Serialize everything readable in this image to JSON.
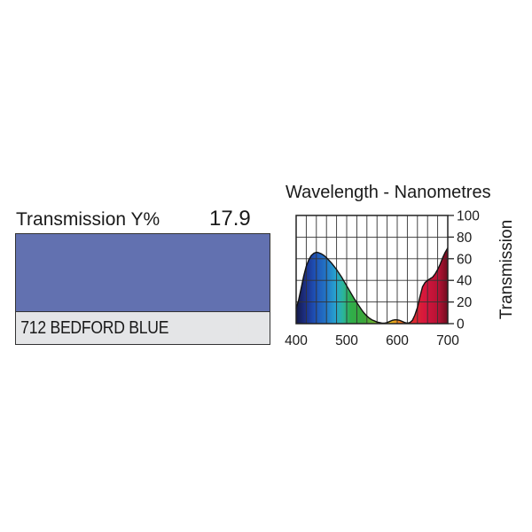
{
  "filter": {
    "transmission_label": "Transmission Y%",
    "transmission_value": "17.9",
    "name": "712 BEDFORD BLUE",
    "swatch_color": "#6271b0",
    "name_bar_color": "#e4e5e7"
  },
  "chart_data": {
    "type": "area",
    "title": "Wavelength - Nanometres",
    "xlabel": "",
    "ylabel": "Transmission",
    "xlim": [
      400,
      700
    ],
    "ylim": [
      0,
      100
    ],
    "x_ticks": [
      400,
      500,
      600,
      700
    ],
    "y_ticks": [
      0,
      20,
      40,
      60,
      80,
      100
    ],
    "grid": true,
    "series": [
      {
        "x": [
          400,
          405,
          410,
          415,
          420,
          425,
          430,
          435,
          440,
          445,
          450,
          455,
          460,
          465,
          470,
          475,
          480,
          485,
          490,
          495,
          500,
          505,
          510,
          515,
          520,
          525,
          530,
          535,
          540,
          545,
          550,
          555,
          560,
          565,
          570,
          575,
          580,
          585,
          590,
          595,
          600,
          605,
          610,
          615,
          620,
          625,
          630,
          635,
          640,
          645,
          650,
          655,
          660,
          665,
          670,
          675,
          680,
          685,
          690,
          695,
          700
        ],
        "y": [
          14,
          22,
          33,
          44,
          53,
          59,
          63,
          65,
          66,
          65.5,
          64.5,
          63,
          61,
          58.5,
          56,
          53,
          50,
          46.5,
          43,
          39,
          35,
          31,
          27,
          23,
          19.5,
          16,
          12.5,
          9.5,
          7,
          5,
          3.5,
          2.5,
          1.5,
          1,
          0.5,
          0.5,
          1,
          2,
          3,
          3.5,
          3.5,
          3,
          2,
          1,
          0.5,
          1,
          3,
          8,
          15,
          25,
          34,
          38,
          40,
          41.5,
          43,
          46,
          50,
          55,
          61,
          66,
          70
        ]
      }
    ]
  }
}
